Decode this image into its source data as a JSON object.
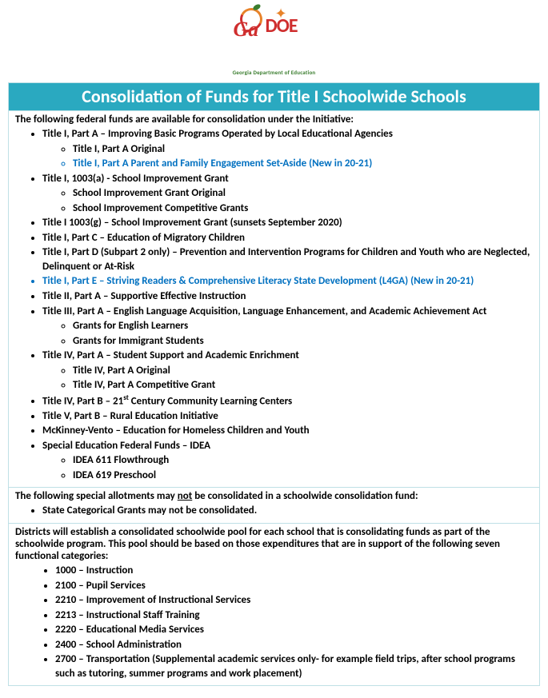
{
  "logo": {
    "ga": "Ga",
    "doe": "DOE",
    "subtitle": "Georgia Department of Education"
  },
  "title": "Consolidation of Funds for Title I Schoolwide Schools",
  "section1": {
    "heading": "The following federal funds are available for consolidation under the Initiative:",
    "items": {
      "i0": "Title I, Part A – Improving Basic Programs Operated by Local Educational Agencies",
      "i0s0": "Title I, Part A Original",
      "i0s1": "Title I, Part A Parent and Family Engagement Set-Aside (New in 20-21)",
      "i1": "Title I, 1003(a) - School Improvement Grant",
      "i1s0": "School Improvement Grant Original",
      "i1s1": "School Improvement Competitive Grants",
      "i2": "Title I 1003(g) –  School Improvement Grant (sunsets September 2020)",
      "i3": "Title I, Part C – Education of Migratory Children",
      "i4": "Title I, Part D (Subpart 2 only) – Prevention and Intervention Programs for Children and Youth who are Neglected, Delinquent or At-Risk",
      "i5": "Title I, Part E – Striving Readers & Comprehensive Literacy State Development (L4GA) (New in 20-21)",
      "i6": "Title II, Part A – Supportive Effective Instruction",
      "i7": "Title III, Part A – English Language Acquisition, Language Enhancement, and Academic Achievement Act",
      "i7s0": "Grants for English Learners",
      "i7s1": "Grants for Immigrant Students",
      "i8": "Title IV, Part A –  Student Support and Academic Enrichment",
      "i8s0": "Title IV, Part A Original",
      "i8s1": "Title IV, Part A Competitive Grant",
      "i9_pre": "Title IV, Part B – 21",
      "i9_sup": "st",
      "i9_post": " Century Community Learning Centers",
      "i10": "Title V, Part B – Rural Education Initiative",
      "i11": "McKinney-Vento – Education for Homeless Children and Youth",
      "i12": "Special Education Federal Funds – IDEA",
      "i12s0": "IDEA 611 Flowthrough",
      "i12s1": "IDEA 619 Preschool"
    }
  },
  "section2": {
    "heading_pre": "The following special allotments may ",
    "heading_u": "not",
    "heading_post": " be consolidated in a schoolwide consolidation fund:",
    "item": "State Categorical Grants may not be consolidated."
  },
  "section3": {
    "heading": "Districts will establish a consolidated schoolwide pool for each school that is consolidating funds as part of the schoolwide program.  This pool should be based on those expenditures that are in support of the following seven functional categories:",
    "c0": "1000 – Instruction",
    "c1": "2100 – Pupil Services",
    "c2": "2210 – Improvement of Instructional Services",
    "c3": "2213 – Instructional Staff Training",
    "c4": "2220 – Educational Media Services",
    "c5": "2400 – School Administration",
    "c6": "2700 – Transportation (Supplemental academic services only- for example field trips, after school programs such as tutoring, summer programs and work placement)"
  },
  "colors": {
    "header_bg": "#2aa9c0",
    "border": "#bfe0e6",
    "highlight": "#0070c0",
    "logo_red": "#cf2e2e",
    "logo_orange": "#e8832a",
    "logo_green": "#3a7d2e"
  }
}
